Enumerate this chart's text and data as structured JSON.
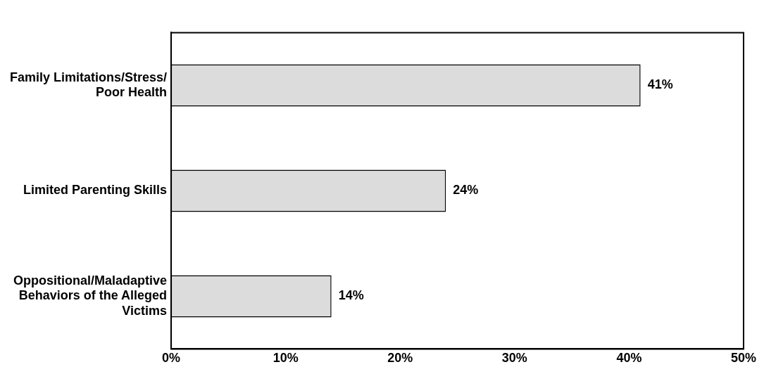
{
  "chart_data": {
    "type": "bar",
    "orientation": "horizontal",
    "categories": [
      "Family Limitations/Stress/Poor Health",
      "Limited Parenting Skills",
      "Oppositional/Maladaptive Behaviors of the Alleged Victims"
    ],
    "values": [
      41,
      24,
      14
    ],
    "color": "#dcdcdc",
    "value_labels": [
      "41%",
      "24%",
      "14%"
    ],
    "xlim": [
      0,
      50
    ],
    "xticks": [
      {
        "value": 0,
        "label": "0%"
      },
      {
        "value": 10,
        "label": "10%"
      },
      {
        "value": 20,
        "label": "20%"
      },
      {
        "value": 30,
        "label": "30%"
      },
      {
        "value": 40,
        "label": "40%"
      },
      {
        "value": 50,
        "label": "50%"
      }
    ],
    "grid": false,
    "legend": false
  }
}
